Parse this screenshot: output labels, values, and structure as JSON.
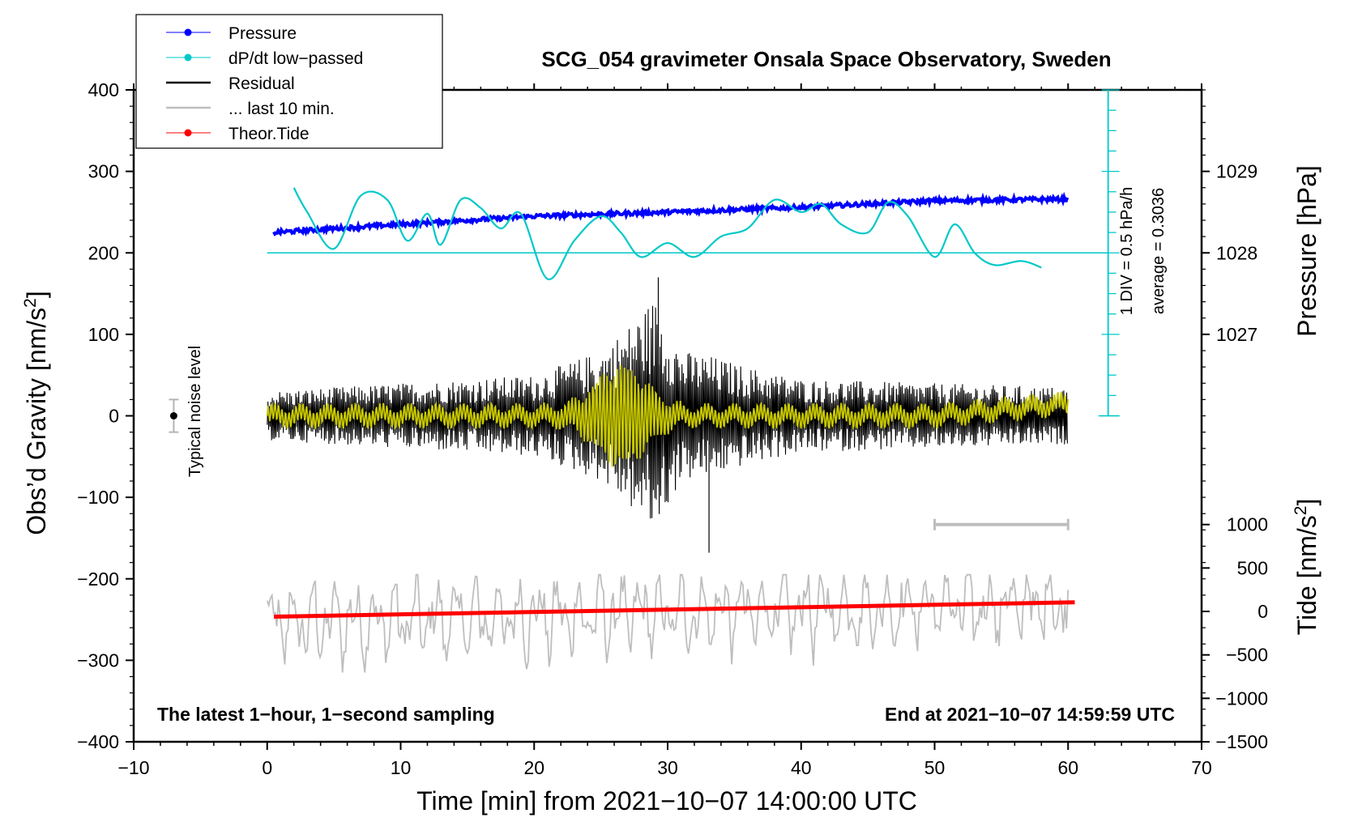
{
  "chart_data": {
    "type": "line",
    "title": "SCG_054 gravimeter Onsala Space Observatory, Sweden",
    "xlabel": "Time [min] from 2021−10−07 14:00:00 UTC",
    "ylabel_left": "Obs’d Gravity [nm/s²]",
    "ylabel_left_main": "Obs’d Gravity [nm/s",
    "ylabel_left_sup": "2",
    "ylabel_left_end": "]",
    "ylabel_right_pressure": "Pressure [hPa]",
    "ylabel_right_tide": "Tide [nm/s²]",
    "ylabel_right_tide_main": "Tide [nm/s",
    "ylabel_right_tide_sup": "2",
    "ylabel_right_tide_end": "]",
    "xlim": [
      -10,
      70
    ],
    "ylim": [
      -400,
      400
    ],
    "x_ticks": [
      -10,
      0,
      10,
      20,
      30,
      40,
      50,
      60,
      70
    ],
    "x_tick_labels": [
      "−10",
      "0",
      "10",
      "20",
      "30",
      "40",
      "50",
      "60",
      "70"
    ],
    "y_ticks": [
      400,
      300,
      200,
      100,
      0,
      -100,
      -200,
      -300,
      -400
    ],
    "y_tick_labels": [
      "400",
      "300",
      "200",
      "100",
      "0",
      "−100",
      "−200",
      "−300",
      "−400"
    ],
    "pressure_axis": {
      "ticks": [
        1029,
        1028,
        1027
      ],
      "tick_labels": [
        "1029",
        "1028",
        "1027"
      ],
      "gravity_equivalent": [
        300,
        200,
        100
      ]
    },
    "tide_axis": {
      "ticks": [
        1000,
        500,
        0,
        -500,
        -1000,
        -1500
      ],
      "tick_labels": [
        "1000",
        "500",
        "0",
        "−500",
        "−1000",
        "−1500"
      ],
      "range": [
        -1500,
        1000
      ],
      "gravity_equivalent_range": [
        -400,
        -133.4
      ]
    },
    "legend": {
      "placement": "top-left",
      "entries": [
        {
          "label": "Pressure",
          "color": "#0000ff",
          "marker": "dot"
        },
        {
          "label": "dP/dt low−passed",
          "color": "#00c8c8",
          "marker": "dot"
        },
        {
          "label": "Residual",
          "color": "#000000",
          "marker": "none"
        },
        {
          "label": "... last 10 min.",
          "color": "#bebebe",
          "marker": "none"
        },
        {
          "label": "Theor.Tide",
          "color": "#ff0000",
          "marker": "dot"
        }
      ]
    },
    "series": [
      {
        "name": "Pressure",
        "color": "#0000ff",
        "units": "hPa",
        "x": [
          0.5,
          10,
          20,
          30,
          40,
          50,
          60
        ],
        "values": [
          1028.25,
          1028.35,
          1028.45,
          1028.5,
          1028.56,
          1028.64,
          1028.66
        ]
      },
      {
        "name": "dP/dt low−passed",
        "color": "#00c8c8",
        "units": "gravity-scale",
        "x": [
          2,
          3,
          5,
          7,
          9,
          10.5,
          12,
          13,
          14.5,
          16,
          17.5,
          19,
          21,
          23,
          25,
          26.5,
          28,
          30,
          32,
          34,
          36,
          38,
          40,
          41.5,
          43,
          45,
          46.5,
          48,
          50,
          51.5,
          53,
          54.5,
          56.5,
          58
        ],
        "values": [
          280,
          250,
          205,
          270,
          265,
          215,
          248,
          210,
          265,
          255,
          230,
          248,
          168,
          215,
          245,
          225,
          195,
          212,
          195,
          220,
          230,
          265,
          250,
          260,
          235,
          225,
          262,
          245,
          195,
          235,
          200,
          185,
          190,
          182
        ]
      },
      {
        "name": "Residual",
        "color": "#000000",
        "units": "nm/s²",
        "x": [
          0,
          10,
          20,
          25,
          27,
          29,
          31,
          33,
          36,
          40,
          50,
          60
        ],
        "values": [
          0,
          0,
          0,
          0,
          0,
          0,
          0,
          0,
          0,
          0,
          0,
          0
        ],
        "envelope": [
          30,
          40,
          50,
          80,
          110,
          145,
          80,
          75,
          60,
          45,
          40,
          35
        ],
        "max": 170,
        "min": -168
      },
      {
        "name": "Residual (smoothed)",
        "color": "#c8c800",
        "units": "nm/s²",
        "x": [
          0,
          20,
          22,
          26,
          29,
          31,
          40,
          50,
          60
        ],
        "values": [
          0,
          0,
          0,
          0,
          0,
          0,
          0,
          0,
          15
        ]
      },
      {
        "name": "... last 10 min.",
        "color": "#bebebe",
        "units": "gravity-scale",
        "x": [
          0,
          60
        ],
        "values": [
          -255,
          -230
        ]
      },
      {
        "name": "Theor.Tide",
        "color": "#ff0000",
        "units": "nm/s²",
        "x": [
          0.5,
          60.5
        ],
        "values": [
          -60,
          105
        ]
      }
    ],
    "annotations": {
      "noise_label": "Typical noise level",
      "noise_bar_x": -7,
      "noise_bar_range": [
        -20,
        20
      ],
      "scale_note_1": "1 DIV = 0.5 hPa/h",
      "scale_note_2": "average = 0.3036",
      "dpdt_zero_level": 200,
      "dpdt_axis_x": 63,
      "dpdt_axis_range": [
        0,
        400
      ],
      "window_marker_x": [
        50,
        60
      ],
      "footer_left": "The latest 1−hour, 1−second sampling",
      "footer_right": "End at 2021−10−07 14:59:59 UTC"
    }
  }
}
